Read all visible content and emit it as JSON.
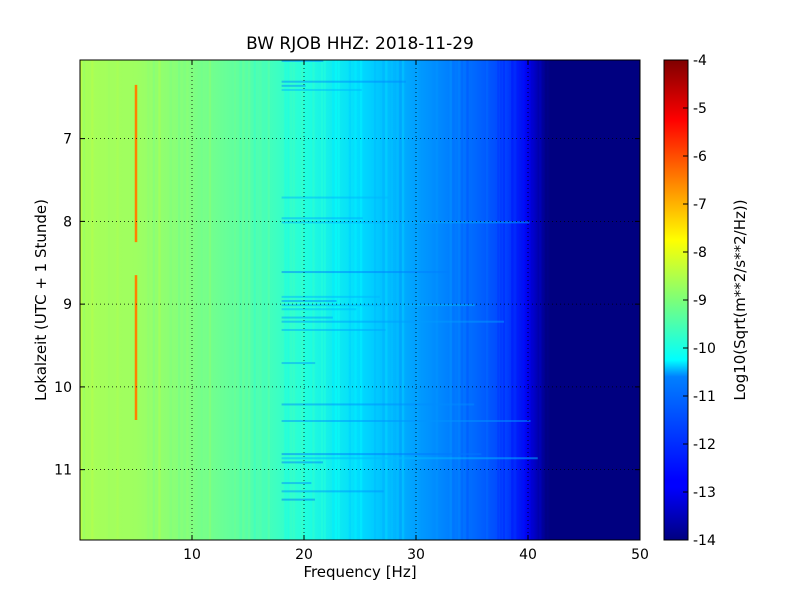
{
  "chart_data": {
    "type": "heatmap",
    "title": "BW RJOB HHZ: 2018-11-29",
    "xlabel": "Frequency [Hz]",
    "ylabel": "Lokalzeit (UTC + 1 Stunde)",
    "xlim": [
      0,
      50
    ],
    "ylim": [
      11.85,
      6.05
    ],
    "y_inverted": true,
    "xticks": [
      "10",
      "20",
      "30",
      "40",
      "50"
    ],
    "yticks": [
      "7",
      "8",
      "9",
      "10",
      "11"
    ],
    "grid": true,
    "colormap": "jet",
    "colorbar": {
      "label": "Log10(Sqrt(m**2/s**2/Hz))",
      "range": [
        -14,
        -4
      ],
      "ticks": [
        "-4",
        "-5",
        "-6",
        "-7",
        "-8",
        "-9",
        "-10",
        "-11",
        "-12",
        "-13",
        "-14"
      ]
    },
    "spectrum_profile": {
      "frequency_hz": [
        0,
        5,
        10,
        15,
        20,
        25,
        30,
        35,
        38,
        40,
        41,
        42,
        45,
        50
      ],
      "log10_amplitude": [
        -8.6,
        -8.7,
        -9.0,
        -9.4,
        -9.9,
        -10.6,
        -11.2,
        -11.7,
        -12.1,
        -12.9,
        -13.6,
        -14,
        -14,
        -14
      ]
    },
    "annotations": [
      {
        "label": "narrow-band line",
        "frequency_hz": 5,
        "time_range": [
          6.35,
          8.25
        ],
        "log10_amplitude": -6.5
      },
      {
        "label": "narrow-band line",
        "frequency_hz": 5,
        "time_range": [
          8.65,
          10.4
        ],
        "log10_amplitude": -6.5
      }
    ]
  }
}
